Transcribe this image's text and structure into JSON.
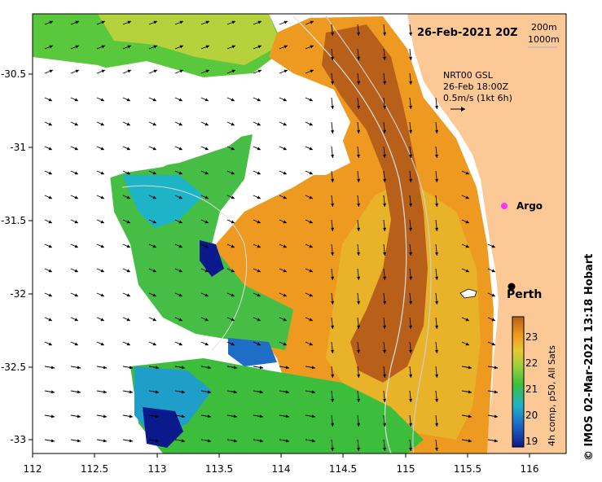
{
  "map": {
    "date_label": "26-Feb-2021 20Z",
    "isobath_labels": [
      "200m",
      "1000m"
    ],
    "current_source": "NRT00 GSL",
    "current_time": "26-Feb 18:00Z",
    "current_scale": "0.5m/s (1kt 6h)",
    "argo_label": "Argo",
    "city_label": "Perth",
    "colorbar_title": "4h comp, p50, All Sats",
    "colorbar_ticks": [
      "23",
      "22",
      "21",
      "20",
      "19"
    ],
    "credit": "© IMOS 02-Mar-2021 13:18 Hobart",
    "x_ticks": [
      "112",
      "112.5",
      "113",
      "113.5",
      "114",
      "114.5",
      "115",
      "115.5",
      "116"
    ],
    "y_ticks": [
      "-30.5",
      "-31",
      "-31.5",
      "-32",
      "-32.5",
      "-33"
    ],
    "colors": {
      "land": "#fcc896",
      "warm": "#b8601a",
      "orange": "#ee9a20",
      "yellow": "#e6c832",
      "green": "#3cbe3c",
      "cyan": "#1e9ec8",
      "navy": "#0a1a8c",
      "argo": "#ff33ff"
    },
    "map_data": {
      "lon_range": [
        112,
        116.3
      ],
      "lat_range": [
        -33.1,
        -30.1
      ],
      "argo": {
        "lon": 115.85,
        "lat": -31.45
      },
      "perth": {
        "lon": 115.86,
        "lat": -31.95
      }
    }
  }
}
